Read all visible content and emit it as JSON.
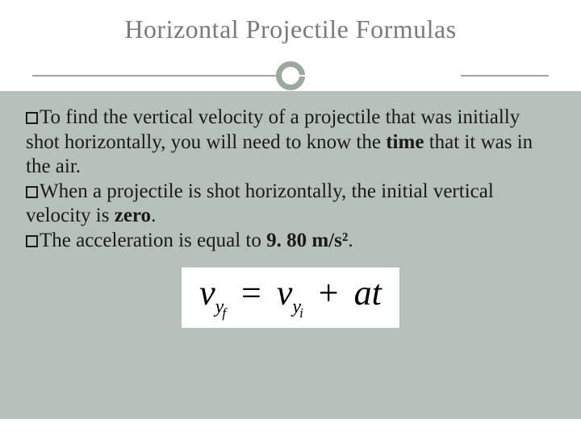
{
  "slide": {
    "title": "Horizontal Projectile Formulas",
    "title_color": "#7a7a7a",
    "title_fontsize": 32,
    "background_main": "#b7c1bb",
    "background_header": "#ffffff",
    "divider_color": "#9aa89f",
    "bullets": [
      {
        "pre": "To find the vertical velocity of a projectile that was initially shot horizontally, you will need to know the ",
        "bold": "time",
        "post": " that it was in the air."
      },
      {
        "pre": "When a projectile is shot horizontally, the initial vertical velocity is ",
        "bold": "zero",
        "post": "."
      },
      {
        "pre": "The acceleration is equal to ",
        "bold": "9. 80 m/s²",
        "post": "."
      }
    ],
    "body_fontsize": 25,
    "body_color": "#1a1a1a",
    "formula": {
      "lhs_var": "v",
      "lhs_sub1": "y",
      "lhs_sub2": "f",
      "rhs1_var": "v",
      "rhs1_sub1": "y",
      "rhs1_sub2": "i",
      "rhs2_a": "a",
      "rhs2_t": "t",
      "bg": "#ffffff",
      "fontsize_main": 44
    }
  }
}
